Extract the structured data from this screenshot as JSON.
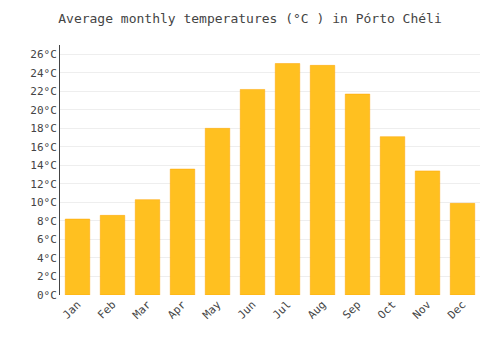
{
  "chart_data": {
    "type": "bar",
    "title": "Average monthly temperatures (°C ) in Pórto Chéli",
    "categories": [
      "Jan",
      "Feb",
      "Mar",
      "Apr",
      "May",
      "Jun",
      "Jul",
      "Aug",
      "Sep",
      "Oct",
      "Nov",
      "Dec"
    ],
    "values": [
      8.2,
      8.6,
      10.3,
      13.6,
      18.0,
      22.2,
      25.0,
      24.8,
      21.7,
      17.1,
      13.4,
      9.9
    ],
    "color": "#FFC020",
    "ylim": [
      0,
      27
    ],
    "yticks": [
      {
        "value": 0,
        "label": "0°C"
      },
      {
        "value": 2,
        "label": "2°C"
      },
      {
        "value": 4,
        "label": "4°C"
      },
      {
        "value": 6,
        "label": "6°C"
      },
      {
        "value": 8,
        "label": "8°C"
      },
      {
        "value": 10,
        "label": "10°C"
      },
      {
        "value": 12,
        "label": "12°C"
      },
      {
        "value": 14,
        "label": "14°C"
      },
      {
        "value": 16,
        "label": "16°C"
      },
      {
        "value": 18,
        "label": "18°C"
      },
      {
        "value": 20,
        "label": "20°C"
      },
      {
        "value": 22,
        "label": "22°C"
      },
      {
        "value": 24,
        "label": "24°C"
      },
      {
        "value": 26,
        "label": "26°C"
      }
    ],
    "grid": true
  }
}
